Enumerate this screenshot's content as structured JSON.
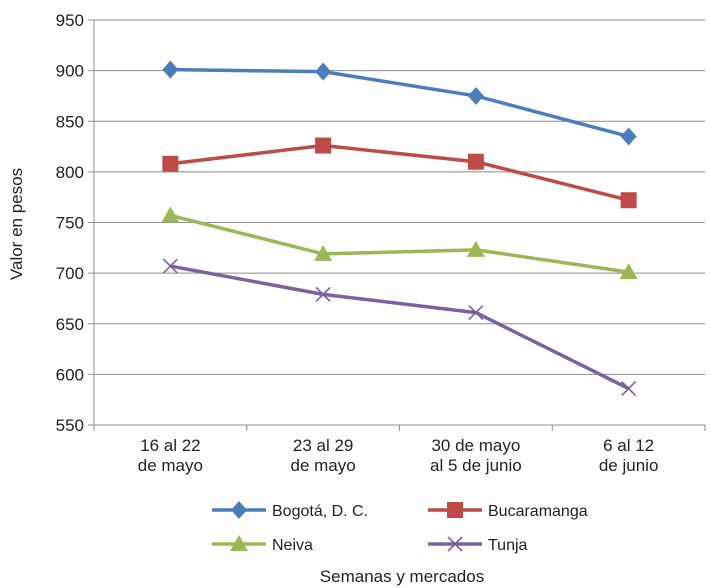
{
  "chart_data": {
    "type": "line",
    "title": "",
    "xlabel": "Semanas y mercados",
    "ylabel": "Valor en pesos",
    "categories": [
      [
        "16 al 22",
        "de mayo"
      ],
      [
        "23 al 29",
        "de mayo"
      ],
      [
        "30 de mayo",
        "al 5 de junio"
      ],
      [
        "6 al 12",
        "de junio"
      ]
    ],
    "ylim": [
      550,
      950
    ],
    "yticks": [
      550,
      600,
      650,
      700,
      750,
      800,
      850,
      900,
      950
    ],
    "grid": "horizontal",
    "legend_position": "bottom",
    "series": [
      {
        "name": "Bogotá, D. C.",
        "values": [
          901,
          899,
          875,
          835
        ],
        "color": "#4a7ebb",
        "marker": "diamond"
      },
      {
        "name": "Bucaramanga",
        "values": [
          808,
          826,
          810,
          772
        ],
        "color": "#be4b48",
        "marker": "square"
      },
      {
        "name": "Neiva",
        "values": [
          757,
          719,
          723,
          701
        ],
        "color": "#98b954",
        "marker": "triangle"
      },
      {
        "name": "Tunja",
        "values": [
          707,
          679,
          661,
          586
        ],
        "color": "#7d60a0",
        "marker": "x"
      }
    ]
  }
}
